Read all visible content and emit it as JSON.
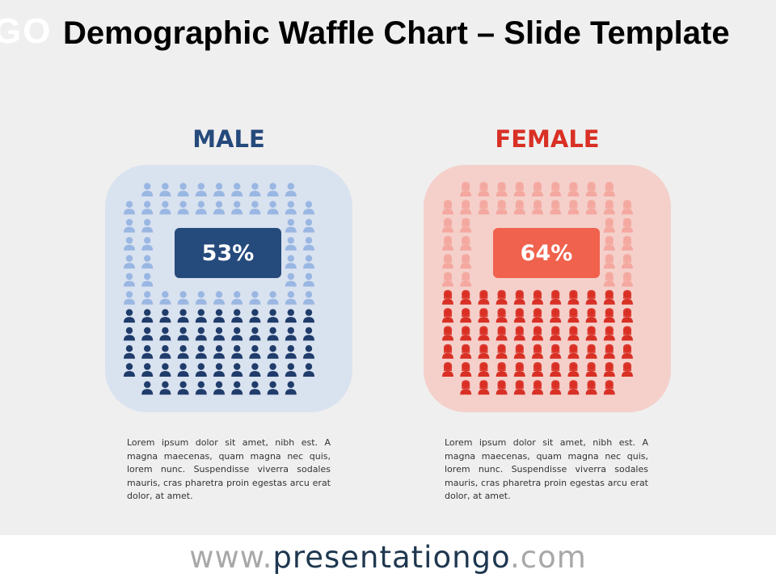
{
  "logo": {
    "text": "GO"
  },
  "title": "Demographic Waffle Chart – Slide Template",
  "footer": {
    "prefix": "www.",
    "brand": "presentationgo",
    "suffix": ".com"
  },
  "colors": {
    "male_dark": "#1f3c6b",
    "male_light": "#9ab7e3",
    "male_bg": "#d9e2ef",
    "male_badge": "#254a7c",
    "female_dark": "#d93025",
    "female_light": "#f4a8a0",
    "female_bg": "#f5d0cb",
    "female_badge": "#f0624d",
    "male_heading": "#254a7c",
    "female_heading": "#d93025"
  },
  "chart_data": [
    {
      "type": "waffle",
      "title": "MALE",
      "label": "53%",
      "value": 53,
      "total": 100,
      "icon": "male-person-icon",
      "description": "Lorem ipsum dolor sit amet, nibh est. A magna maecenas, quam magna nec quis, lorem nunc. Suspendisse viverra sodales mauris, cras pharetra proin egestas arcu erat dolor, at amet."
    },
    {
      "type": "waffle",
      "title": "FEMALE",
      "label": "64%",
      "value": 64,
      "total": 100,
      "icon": "female-person-icon",
      "description": "Lorem ipsum dolor sit amet, nibh est. A magna maecenas, quam magna nec quis, lorem nunc. Suspendisse viverra sodales mauris, cras pharetra proin egestas arcu erat dolor, at amet."
    }
  ]
}
